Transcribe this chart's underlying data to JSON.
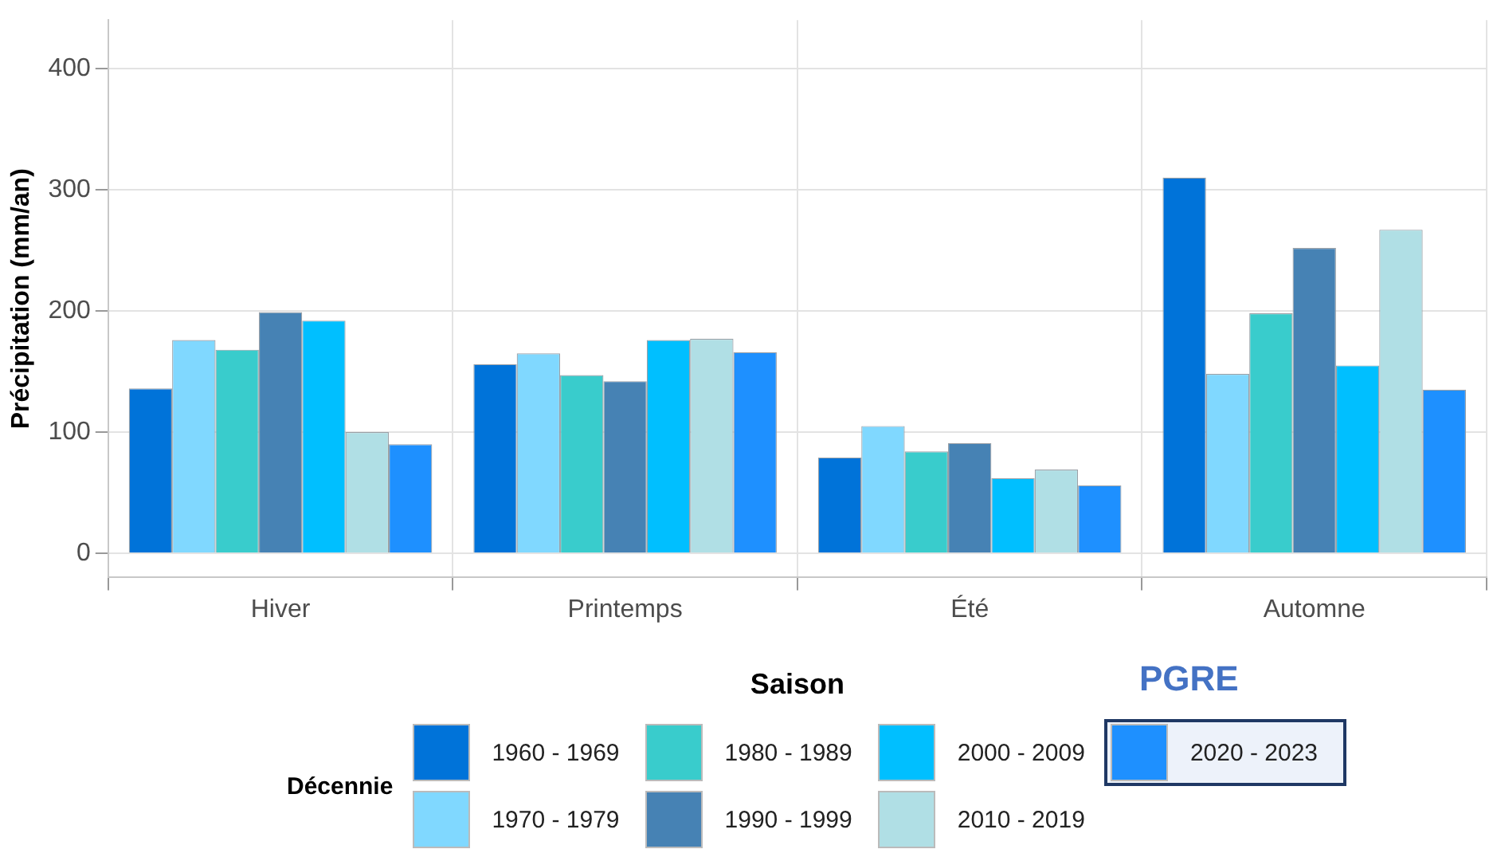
{
  "chart_data": {
    "type": "bar",
    "xlabel": "Saison",
    "ylabel": "Précipitation (mm/an)",
    "legend_title": "Décennie",
    "annotations": [
      "PGRE"
    ],
    "categories": [
      "Hiver",
      "Printemps",
      "Été",
      "Automne"
    ],
    "series": [
      {
        "name": "1960 - 1969",
        "color": "#0073d9",
        "values": [
          136,
          156,
          79,
          310
        ]
      },
      {
        "name": "1970 - 1979",
        "color": "#80d8ff",
        "values": [
          176,
          165,
          105,
          148
        ]
      },
      {
        "name": "1980 - 1989",
        "color": "#39cccc",
        "values": [
          168,
          147,
          84,
          198
        ]
      },
      {
        "name": "1990 - 1999",
        "color": "#4682b4",
        "values": [
          199,
          142,
          91,
          252
        ]
      },
      {
        "name": "2000 - 2009",
        "color": "#00bfff",
        "values": [
          192,
          176,
          62,
          155
        ]
      },
      {
        "name": "2010 - 2019",
        "color": "#b0dfe5",
        "values": [
          100,
          177,
          69,
          267
        ]
      },
      {
        "name": "2020 - 2023",
        "color": "#1e90ff",
        "values": [
          90,
          166,
          56,
          135
        ]
      }
    ],
    "ylim": [
      -20,
      440
    ],
    "yticks": [
      0,
      100,
      200,
      300,
      400
    ],
    "grid": true,
    "legend": "bottom"
  }
}
